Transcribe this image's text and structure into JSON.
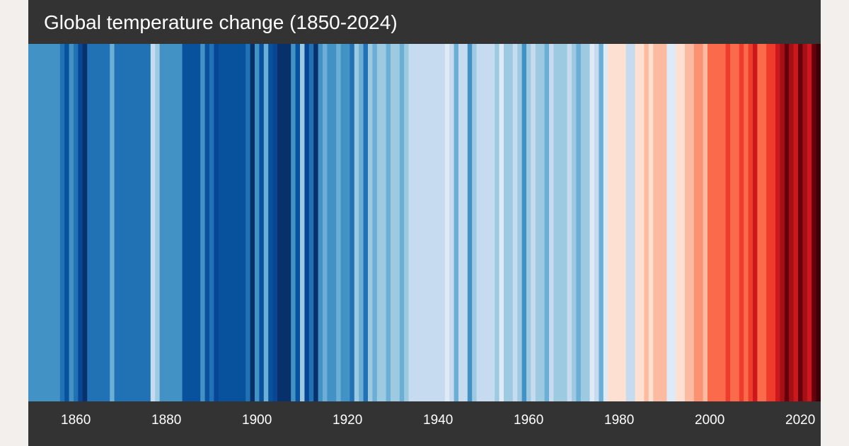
{
  "chart_data": {
    "type": "heatmap",
    "title": "Global temperature change (1850-2024)",
    "x_start_year": 1850,
    "x_end_year": 2024,
    "xlim": [
      1850,
      2024
    ],
    "legend": "none",
    "grid": false,
    "xticks": [
      {
        "year": 1860,
        "label": "1860"
      },
      {
        "year": 1880,
        "label": "1880"
      },
      {
        "year": 1900,
        "label": "1900"
      },
      {
        "year": 1920,
        "label": "1920"
      },
      {
        "year": 1940,
        "label": "1940"
      },
      {
        "year": 1960,
        "label": "1960"
      },
      {
        "year": 1980,
        "label": "1980"
      },
      {
        "year": 2000,
        "label": "2000"
      },
      {
        "year": 2020,
        "label": "2020"
      }
    ],
    "colors": [
      "#4292c6",
      "#4292c6",
      "#4292c6",
      "#4292c6",
      "#4292c6",
      "#4292c6",
      "#4292c6",
      "#2171b5",
      "#08519c",
      "#4292c6",
      "#2171b5",
      "#084594",
      "#08306b",
      "#2171b5",
      "#2171b5",
      "#2171b5",
      "#2171b5",
      "#2171b5",
      "#6baed6",
      "#2171b5",
      "#2171b5",
      "#2171b5",
      "#2171b5",
      "#2171b5",
      "#2171b5",
      "#2171b5",
      "#2171b5",
      "#c6dbef",
      "#9ecae1",
      "#4292c6",
      "#4292c6",
      "#4292c6",
      "#4292c6",
      "#4292c6",
      "#08519c",
      "#08519c",
      "#08519c",
      "#08519c",
      "#4292c6",
      "#08519c",
      "#2171b5",
      "#084594",
      "#08519c",
      "#08519c",
      "#08519c",
      "#08519c",
      "#08519c",
      "#08519c",
      "#2171b5",
      "#08306b",
      "#4292c6",
      "#08519c",
      "#6baed6",
      "#08519c",
      "#084594",
      "#08306b",
      "#08306b",
      "#08306b",
      "#4292c6",
      "#08519c",
      "#9ecae1",
      "#084594",
      "#2171b5",
      "#08306b",
      "#4292c6",
      "#6baed6",
      "#4292c6",
      "#4292c6",
      "#6baed6",
      "#4292c6",
      "#4292c6",
      "#2171b5",
      "#9ecae1",
      "#6baed6",
      "#2171b5",
      "#9ecae1",
      "#6baed6",
      "#9ecae1",
      "#9ecae1",
      "#6baed6",
      "#9ecae1",
      "#9ecae1",
      "#6baed6",
      "#9ecae1",
      "#c6dbef",
      "#c6dbef",
      "#c6dbef",
      "#c6dbef",
      "#c6dbef",
      "#c6dbef",
      "#c6dbef",
      "#c6dbef",
      "#deebf7",
      "#c6dbef",
      "#6baed6",
      "#c6dbef",
      "#c6dbef",
      "#4292c6",
      "#9ecae1",
      "#c6dbef",
      "#c6dbef",
      "#c6dbef",
      "#c6dbef",
      "#9ecae1",
      "#deebf7",
      "#9ecae1",
      "#9ecae1",
      "#c6dbef",
      "#9ecae1",
      "#4292c6",
      "#9ecae1",
      "#c6dbef",
      "#9ecae1",
      "#9ecae1",
      "#6baed6",
      "#c6dbef",
      "#9ecae1",
      "#9ecae1",
      "#9ecae1",
      "#c6dbef",
      "#9ecae1",
      "#6baed6",
      "#9ecae1",
      "#9ecae1",
      "#deebf7",
      "#c6dbef",
      "#6baed6",
      "#deebf7",
      "#fee0d2",
      "#fee0d2",
      "#fee0d2",
      "#fee0d2",
      "#c6dbef",
      "#c6dbef",
      "#fee0d2",
      "#fee0d2",
      "#fcbba1",
      "#fee0d2",
      "#fcbba1",
      "#fcbba1",
      "#fcbba1",
      "#deebf7",
      "#deebf7",
      "#fee0d2",
      "#fee0d2",
      "#fcbba1",
      "#fcbba1",
      "#fc9272",
      "#fc9272",
      "#fcbba1",
      "#fb6a4a",
      "#fb6a4a",
      "#fb6a4a",
      "#fb6a4a",
      "#ef3b2c",
      "#fb6a4a",
      "#fb6a4a",
      "#ef3b2c",
      "#fb6a4a",
      "#ef3b2c",
      "#cb181d",
      "#fb6a4a",
      "#fb6a4a",
      "#ef3b2c",
      "#ef3b2c",
      "#cb181d",
      "#a50f15",
      "#67000d",
      "#a50f15",
      "#cb181d",
      "#67000d",
      "#a50f15",
      "#cb181d",
      "#67000d",
      "#3b0007"
    ]
  }
}
